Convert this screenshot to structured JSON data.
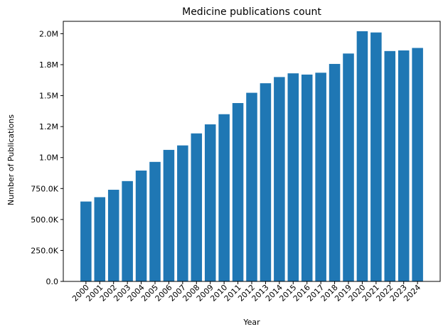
{
  "chart_data": {
    "type": "bar",
    "title": "Medicine publications count",
    "xlabel": "Year",
    "ylabel": "Number of Publications",
    "categories": [
      "2000",
      "2001",
      "2002",
      "2003",
      "2004",
      "2005",
      "2006",
      "2007",
      "2008",
      "2009",
      "2010",
      "2011",
      "2012",
      "2013",
      "2014",
      "2015",
      "2016",
      "2017",
      "2018",
      "2019",
      "2020",
      "2021",
      "2022",
      "2023",
      "2024"
    ],
    "values": [
      645000,
      680000,
      740000,
      810000,
      895000,
      965000,
      1062000,
      1098000,
      1195000,
      1268000,
      1350000,
      1440000,
      1523000,
      1600000,
      1650000,
      1680000,
      1670000,
      1685000,
      1756000,
      1840000,
      2020000,
      2010000,
      1860000,
      1865000,
      1885000
    ],
    "ylim": [
      0,
      2100000
    ],
    "yticks": [
      0,
      250000,
      500000,
      750000,
      1000000,
      1250000,
      1500000,
      1750000,
      2000000
    ],
    "ytick_labels": [
      "0.0",
      "250.0K",
      "500.0K",
      "750.0K",
      "1.0M",
      "1.2M",
      "1.5M",
      "1.8M",
      "2.0M"
    ],
    "bar_color": "#1f77b4",
    "grid": false,
    "legend": "none"
  }
}
